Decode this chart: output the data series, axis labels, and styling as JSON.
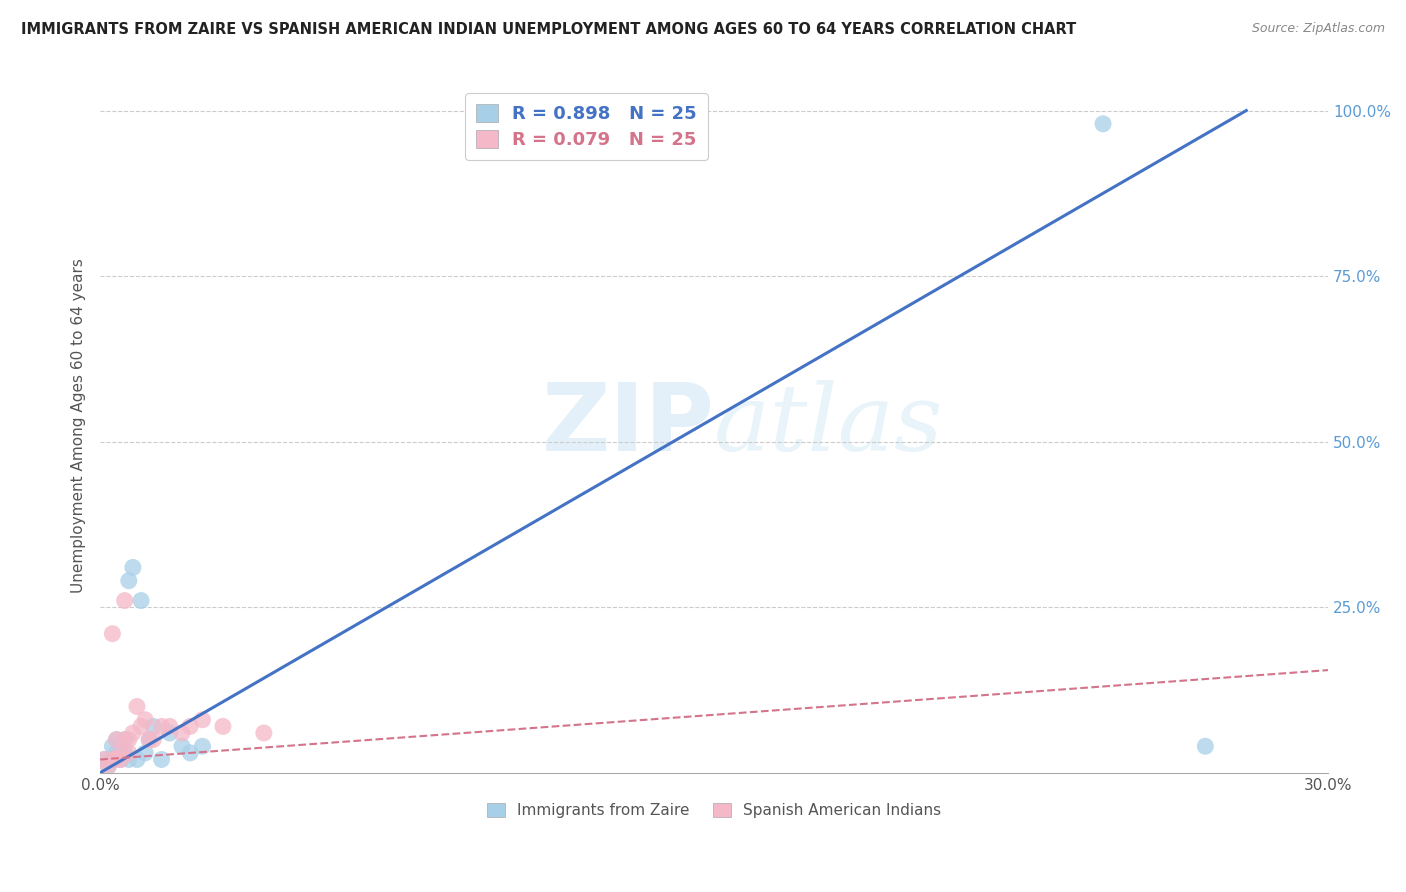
{
  "title": "IMMIGRANTS FROM ZAIRE VS SPANISH AMERICAN INDIAN UNEMPLOYMENT AMONG AGES 60 TO 64 YEARS CORRELATION CHART",
  "source": "Source: ZipAtlas.com",
  "ylabel_label": "Unemployment Among Ages 60 to 64 years",
  "xlim": [
    0.0,
    0.3
  ],
  "ylim": [
    0.0,
    1.05
  ],
  "blue_R": 0.898,
  "blue_N": 25,
  "pink_R": 0.079,
  "pink_N": 25,
  "blue_scatter_x": [
    0.001,
    0.002,
    0.003,
    0.003,
    0.004,
    0.004,
    0.005,
    0.005,
    0.006,
    0.006,
    0.007,
    0.007,
    0.008,
    0.009,
    0.01,
    0.011,
    0.012,
    0.013,
    0.015,
    0.017,
    0.02,
    0.022,
    0.025,
    0.245,
    0.27
  ],
  "blue_scatter_y": [
    0.02,
    0.01,
    0.02,
    0.04,
    0.03,
    0.05,
    0.02,
    0.04,
    0.03,
    0.05,
    0.29,
    0.02,
    0.31,
    0.02,
    0.26,
    0.03,
    0.05,
    0.07,
    0.02,
    0.06,
    0.04,
    0.03,
    0.04,
    0.98,
    0.04
  ],
  "pink_scatter_x": [
    0.001,
    0.002,
    0.003,
    0.003,
    0.004,
    0.004,
    0.005,
    0.005,
    0.006,
    0.006,
    0.007,
    0.007,
    0.008,
    0.009,
    0.01,
    0.011,
    0.012,
    0.013,
    0.015,
    0.017,
    0.02,
    0.022,
    0.025,
    0.03,
    0.04
  ],
  "pink_scatter_y": [
    0.02,
    0.01,
    0.21,
    0.02,
    0.05,
    0.02,
    0.03,
    0.02,
    0.26,
    0.05,
    0.03,
    0.05,
    0.06,
    0.1,
    0.07,
    0.08,
    0.05,
    0.05,
    0.07,
    0.07,
    0.06,
    0.07,
    0.08,
    0.07,
    0.06
  ],
  "blue_line_x": [
    0.0,
    0.28
  ],
  "blue_line_y": [
    0.0,
    1.0
  ],
  "pink_line_x": [
    0.0,
    0.3
  ],
  "pink_line_y": [
    0.02,
    0.155
  ],
  "blue_color": "#a8cfe8",
  "pink_color": "#f4b8c8",
  "blue_line_color": "#4472c4",
  "pink_line_color": "#d4738a",
  "watermark_zip": "ZIP",
  "watermark_atlas": "atlas",
  "background_color": "#ffffff",
  "grid_color": "#cccccc"
}
